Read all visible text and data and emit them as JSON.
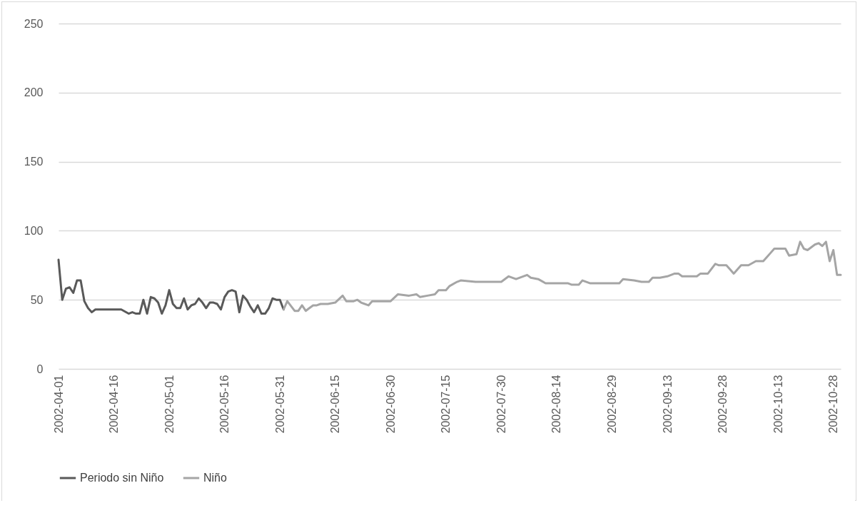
{
  "chart_data": {
    "type": "line",
    "ylim": [
      0,
      250
    ],
    "yticks": [
      0,
      50,
      100,
      150,
      200,
      250
    ],
    "xlim": [
      "2002-04-01",
      "2002-10-30"
    ],
    "xticks": [
      "2002-04-01",
      "2002-04-16",
      "2002-05-01",
      "2002-05-16",
      "2002-05-31",
      "2002-06-15",
      "2002-06-30",
      "2002-07-15",
      "2002-07-30",
      "2002-08-14",
      "2002-08-29",
      "2002-09-13",
      "2002-09-28",
      "2002-10-13",
      "2002-10-28"
    ],
    "grid": "y",
    "legend": "bottom",
    "marker": "none",
    "line_style": "solid",
    "series": [
      {
        "name": "Periodo sin Niño",
        "color": "#595959",
        "x": [
          "2002-04-01",
          "2002-04-02",
          "2002-04-03",
          "2002-04-04",
          "2002-04-05",
          "2002-04-06",
          "2002-04-07",
          "2002-04-08",
          "2002-04-09",
          "2002-04-10",
          "2002-04-11",
          "2002-04-13",
          "2002-04-14",
          "2002-04-15",
          "2002-04-18",
          "2002-04-20",
          "2002-04-21",
          "2002-04-22",
          "2002-04-23",
          "2002-04-24",
          "2002-04-25",
          "2002-04-26",
          "2002-04-27",
          "2002-04-28",
          "2002-04-29",
          "2002-04-30",
          "2002-05-01",
          "2002-05-02",
          "2002-05-03",
          "2002-05-04",
          "2002-05-05",
          "2002-05-06",
          "2002-05-07",
          "2002-05-08",
          "2002-05-09",
          "2002-05-10",
          "2002-05-11",
          "2002-05-12",
          "2002-05-13",
          "2002-05-14",
          "2002-05-15",
          "2002-05-16",
          "2002-05-17",
          "2002-05-18",
          "2002-05-19",
          "2002-05-20",
          "2002-05-21",
          "2002-05-22",
          "2002-05-23",
          "2002-05-24",
          "2002-05-25",
          "2002-05-26",
          "2002-05-27",
          "2002-05-28",
          "2002-05-29",
          "2002-05-30",
          "2002-05-31",
          "2002-06-01"
        ],
        "values": [
          79,
          50,
          58,
          59,
          55,
          64,
          64,
          49,
          44,
          41,
          43,
          43,
          43,
          43,
          43,
          40,
          41,
          40,
          40,
          50,
          40,
          52,
          51,
          48,
          40,
          46,
          57,
          47,
          44,
          44,
          51,
          43,
          46,
          47,
          51,
          48,
          44,
          48,
          48,
          47,
          43,
          52,
          56,
          57,
          56,
          41,
          53,
          50,
          45,
          41,
          46,
          40,
          40,
          44,
          51,
          50,
          50,
          43
        ]
      },
      {
        "name": "Niño",
        "color": "#a5a5a5",
        "x": [
          "2002-06-01",
          "2002-06-02",
          "2002-06-04",
          "2002-06-05",
          "2002-06-06",
          "2002-06-07",
          "2002-06-08",
          "2002-06-09",
          "2002-06-10",
          "2002-06-11",
          "2002-06-13",
          "2002-06-15",
          "2002-06-17",
          "2002-06-18",
          "2002-06-20",
          "2002-06-21",
          "2002-06-22",
          "2002-06-24",
          "2002-06-25",
          "2002-06-30",
          "2002-07-02",
          "2002-07-05",
          "2002-07-07",
          "2002-07-08",
          "2002-07-10",
          "2002-07-12",
          "2002-07-13",
          "2002-07-15",
          "2002-07-16",
          "2002-07-18",
          "2002-07-19",
          "2002-07-23",
          "2002-07-30",
          "2002-08-01",
          "2002-08-03",
          "2002-08-06",
          "2002-08-07",
          "2002-08-09",
          "2002-08-11",
          "2002-08-12",
          "2002-08-17",
          "2002-08-18",
          "2002-08-20",
          "2002-08-21",
          "2002-08-23",
          "2002-08-31",
          "2002-09-01",
          "2002-09-04",
          "2002-09-06",
          "2002-09-08",
          "2002-09-09",
          "2002-09-11",
          "2002-09-13",
          "2002-09-15",
          "2002-09-16",
          "2002-09-17",
          "2002-09-21",
          "2002-09-22",
          "2002-09-24",
          "2002-09-26",
          "2002-09-27",
          "2002-09-29",
          "2002-09-30",
          "2002-10-01",
          "2002-10-03",
          "2002-10-05",
          "2002-10-07",
          "2002-10-09",
          "2002-10-10",
          "2002-10-11",
          "2002-10-12",
          "2002-10-15",
          "2002-10-16",
          "2002-10-18",
          "2002-10-19",
          "2002-10-20",
          "2002-10-21",
          "2002-10-23",
          "2002-10-24",
          "2002-10-25",
          "2002-10-26",
          "2002-10-27",
          "2002-10-28",
          "2002-10-29",
          "2002-10-30"
        ],
        "values": [
          43,
          49,
          42,
          42,
          46,
          42,
          44,
          46,
          46,
          47,
          47,
          48,
          53,
          49,
          49,
          50,
          48,
          46,
          49,
          49,
          54,
          53,
          54,
          52,
          53,
          54,
          57,
          57,
          60,
          63,
          64,
          63,
          63,
          67,
          65,
          68,
          66,
          65,
          62,
          62,
          62,
          61,
          61,
          64,
          62,
          62,
          65,
          64,
          63,
          63,
          66,
          66,
          67,
          69,
          69,
          67,
          67,
          69,
          69,
          76,
          75,
          75,
          72,
          69,
          75,
          75,
          78,
          78,
          81,
          84,
          87,
          87,
          82,
          83,
          92,
          87,
          86,
          90,
          91,
          89,
          92,
          78,
          86,
          68,
          68
        ]
      }
    ]
  }
}
